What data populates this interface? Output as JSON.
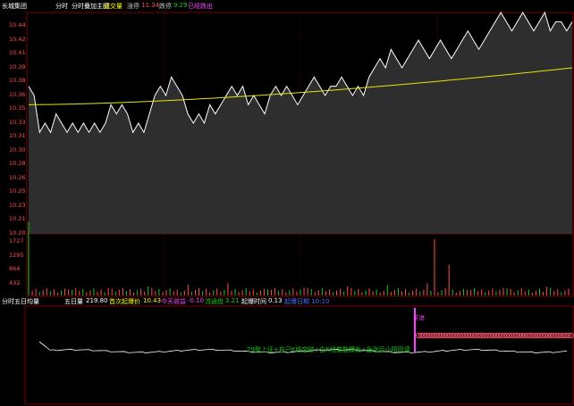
{
  "header": {
    "stock_name": "长城集团",
    "mode": "分时",
    "indicator": "分时叠加主图",
    "volume_label": "成交量",
    "limit_up_label": "涨停",
    "limit_up_value": "11.34",
    "limit_down_label": "跌停",
    "limit_down_value": "9.29",
    "signal_label": "已经跌出"
  },
  "price_axis": [
    "10.44",
    "10.42",
    "10.41",
    "10.39",
    "10.38",
    "10.36",
    "10.35",
    "10.33",
    "10.31",
    "10.30",
    "10.28",
    "10.26",
    "10.25",
    "10.23",
    "10.21",
    "10.20"
  ],
  "volume_axis": [
    "1727",
    "1295",
    "864",
    "432"
  ],
  "sub_panel": {
    "name": "分时五日均量",
    "five_day_label": "五日量",
    "five_day_value": "219.80",
    "first_lift_label": "首次起爆价",
    "first_lift_value": "10.43",
    "gain_label": "今天收益",
    "gain_value": "-0.10",
    "turnover_label": "流通盘",
    "turnover_value": "3.21",
    "lift_time_label": "起爆时间",
    "lift_time_value": "0.13",
    "lift_date": "起爆日期 10:10",
    "note": "29我上证+自己K线突破+白K线量能爆发+急涨后小阳回调",
    "tag": "买进"
  },
  "chart_data": {
    "type": "line",
    "price_series": [
      10.36,
      10.35,
      10.31,
      10.32,
      10.31,
      10.33,
      10.32,
      10.31,
      10.32,
      10.31,
      10.32,
      10.31,
      10.32,
      10.31,
      10.32,
      10.34,
      10.33,
      10.34,
      10.33,
      10.31,
      10.32,
      10.31,
      10.33,
      10.35,
      10.36,
      10.35,
      10.37,
      10.36,
      10.35,
      10.33,
      10.32,
      10.33,
      10.32,
      10.34,
      10.33,
      10.34,
      10.35,
      10.36,
      10.35,
      10.36,
      10.34,
      10.35,
      10.34,
      10.33,
      10.35,
      10.36,
      10.35,
      10.36,
      10.35,
      10.34,
      10.35,
      10.36,
      10.37,
      10.36,
      10.35,
      10.36,
      10.36,
      10.37,
      10.36,
      10.35,
      10.36,
      10.35,
      10.37,
      10.38,
      10.39,
      10.38,
      10.4,
      10.39,
      10.38,
      10.39,
      10.4,
      10.41,
      10.4,
      10.39,
      10.4,
      10.41,
      10.4,
      10.39,
      10.4,
      10.41,
      10.42,
      10.41,
      10.4,
      10.41,
      10.42,
      10.43,
      10.44,
      10.43,
      10.42,
      10.43,
      10.44,
      10.43,
      10.42,
      10.43,
      10.44,
      10.42,
      10.43,
      10.43,
      10.42,
      10.43
    ],
    "avg_series_start": 10.34,
    "avg_series_end": 10.38,
    "ylim": [
      10.2,
      10.44
    ],
    "volume_ylim": [
      0,
      1727
    ]
  }
}
